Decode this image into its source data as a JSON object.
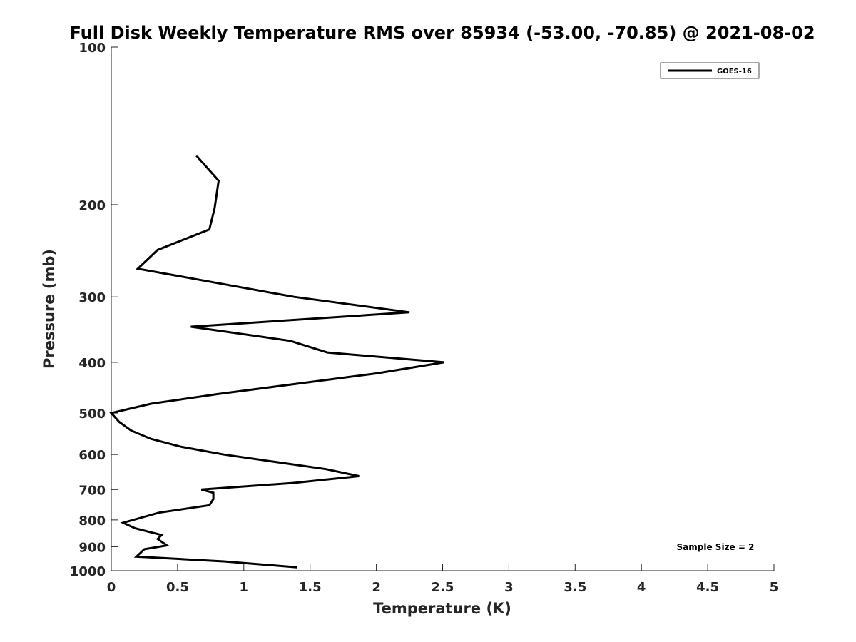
{
  "chart_data": {
    "type": "line",
    "title": "Full Disk Weekly Temperature RMS over 85934 (-53.00, -70.85) @ 2021-08-02",
    "xlabel": "Temperature (K)",
    "ylabel": "Pressure (mb)",
    "xlim": [
      0,
      5
    ],
    "ylim": [
      100,
      1000
    ],
    "y_scale": "log",
    "y_reversed": true,
    "grid": false,
    "legend_position": "top-right",
    "x_ticks": [
      0,
      0.5,
      1,
      1.5,
      2,
      2.5,
      3,
      3.5,
      4,
      4.5,
      5
    ],
    "x_tick_labels": [
      "0",
      "0.5",
      "1",
      "1.5",
      "2",
      "2.5",
      "3",
      "3.5",
      "4",
      "4.5",
      "5"
    ],
    "y_ticks": [
      100,
      200,
      300,
      400,
      500,
      600,
      700,
      800,
      900,
      1000
    ],
    "y_tick_labels": [
      "100",
      "200",
      "300",
      "400",
      "500",
      "600",
      "700",
      "800",
      "900",
      "1000"
    ],
    "series": [
      {
        "name": "GOES-16",
        "color": "#000000",
        "points": [
          {
            "x": 0.64,
            "y": 161
          },
          {
            "x": 0.81,
            "y": 180
          },
          {
            "x": 0.78,
            "y": 203
          },
          {
            "x": 0.74,
            "y": 223
          },
          {
            "x": 0.35,
            "y": 244
          },
          {
            "x": 0.2,
            "y": 265
          },
          {
            "x": 1.38,
            "y": 300
          },
          {
            "x": 2.25,
            "y": 321
          },
          {
            "x": 0.6,
            "y": 342
          },
          {
            "x": 1.35,
            "y": 364
          },
          {
            "x": 1.63,
            "y": 383
          },
          {
            "x": 2.51,
            "y": 400
          },
          {
            "x": 2.0,
            "y": 420
          },
          {
            "x": 0.8,
            "y": 460
          },
          {
            "x": 0.3,
            "y": 480
          },
          {
            "x": 0.0,
            "y": 500
          },
          {
            "x": 0.06,
            "y": 520
          },
          {
            "x": 0.15,
            "y": 540
          },
          {
            "x": 0.3,
            "y": 560
          },
          {
            "x": 0.53,
            "y": 580
          },
          {
            "x": 0.85,
            "y": 600
          },
          {
            "x": 1.62,
            "y": 640
          },
          {
            "x": 1.87,
            "y": 660
          },
          {
            "x": 1.37,
            "y": 680
          },
          {
            "x": 0.68,
            "y": 700
          },
          {
            "x": 0.77,
            "y": 710
          },
          {
            "x": 0.77,
            "y": 730
          },
          {
            "x": 0.74,
            "y": 750
          },
          {
            "x": 0.36,
            "y": 775
          },
          {
            "x": 0.09,
            "y": 810
          },
          {
            "x": 0.18,
            "y": 830
          },
          {
            "x": 0.38,
            "y": 855
          },
          {
            "x": 0.35,
            "y": 870
          },
          {
            "x": 0.42,
            "y": 895
          },
          {
            "x": 0.25,
            "y": 910
          },
          {
            "x": 0.19,
            "y": 940
          },
          {
            "x": 0.85,
            "y": 960
          },
          {
            "x": 1.4,
            "y": 985
          }
        ]
      }
    ],
    "annotations": [
      {
        "text": "Sample Size = 2"
      }
    ]
  }
}
